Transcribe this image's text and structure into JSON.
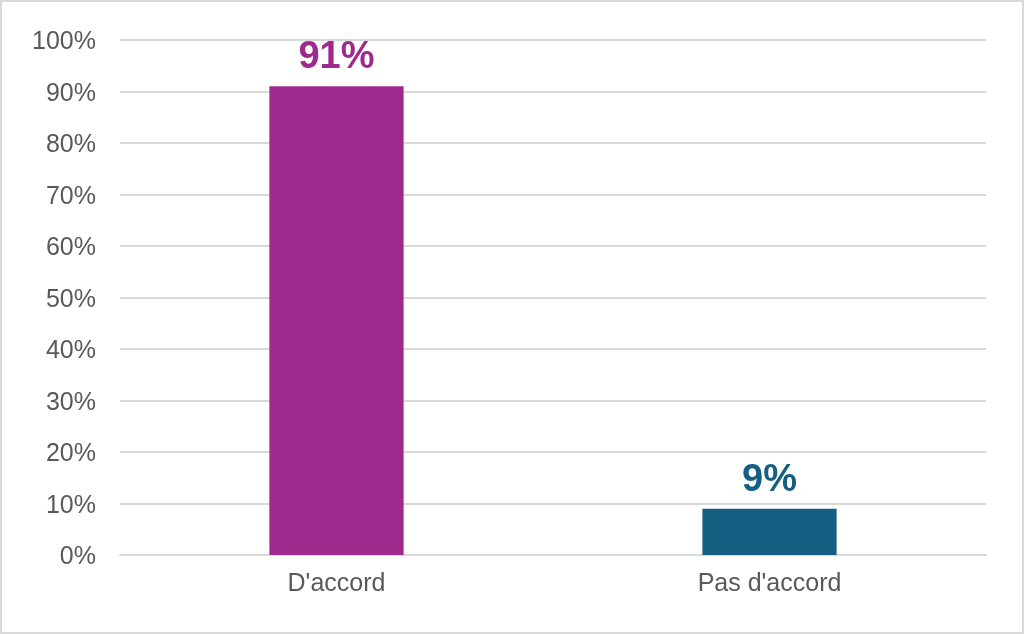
{
  "chart_data": {
    "type": "bar",
    "categories": [
      "D'accord",
      "Pas d'accord"
    ],
    "values": [
      91,
      9
    ],
    "colors": [
      "#9e2a8e",
      "#155f82"
    ],
    "value_labels": [
      "91%",
      "9%"
    ],
    "ylim": [
      0,
      100
    ],
    "yticks": [
      {
        "value": 0,
        "label": "0%"
      },
      {
        "value": 10,
        "label": "10%"
      },
      {
        "value": 20,
        "label": "20%"
      },
      {
        "value": 30,
        "label": "30%"
      },
      {
        "value": 40,
        "label": "40%"
      },
      {
        "value": 50,
        "label": "50%"
      },
      {
        "value": 60,
        "label": "60%"
      },
      {
        "value": 70,
        "label": "70%"
      },
      {
        "value": 80,
        "label": "80%"
      },
      {
        "value": 90,
        "label": "90%"
      },
      {
        "value": 100,
        "label": "100%"
      }
    ],
    "grid": "y"
  }
}
